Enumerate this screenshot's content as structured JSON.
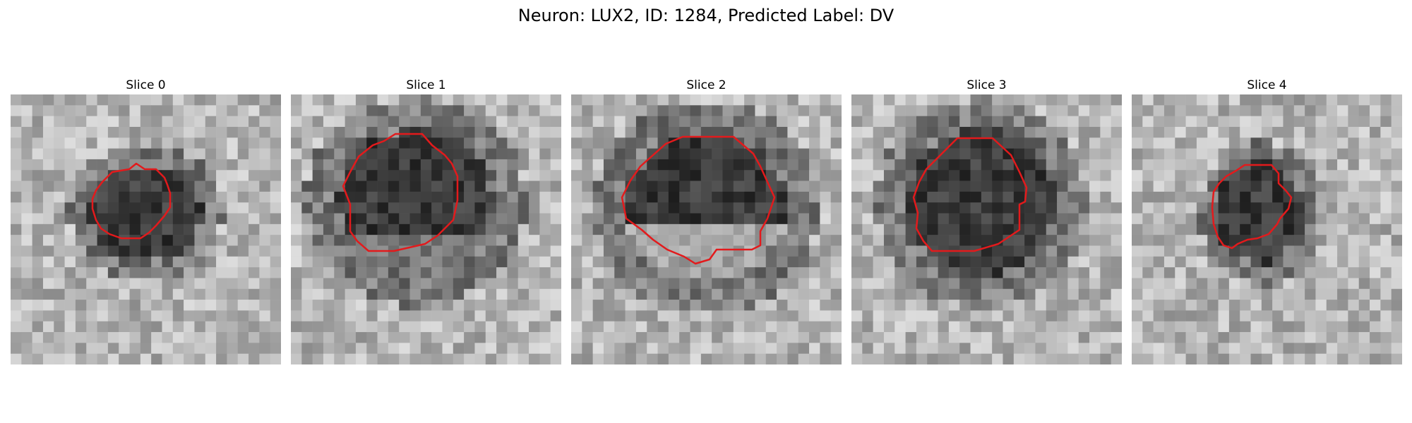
{
  "figure": {
    "title": "Neuron: LUX2, ID: 1284, Predicted Label: DV"
  },
  "panels": [
    {
      "title": "Slice 0"
    },
    {
      "title": "Slice 1"
    },
    {
      "title": "Slice 2"
    },
    {
      "title": "Slice 3"
    },
    {
      "title": "Slice 4"
    }
  ],
  "colors": {
    "outline": "#e31a1c",
    "background": "#ffffff"
  }
}
